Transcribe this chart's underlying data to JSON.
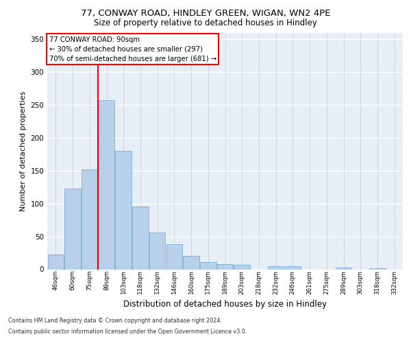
{
  "title1": "77, CONWAY ROAD, HINDLEY GREEN, WIGAN, WN2 4PE",
  "title2": "Size of property relative to detached houses in Hindley",
  "xlabel": "Distribution of detached houses by size in Hindley",
  "ylabel": "Number of detached properties",
  "categories": [
    "46sqm",
    "60sqm",
    "75sqm",
    "89sqm",
    "103sqm",
    "118sqm",
    "132sqm",
    "146sqm",
    "160sqm",
    "175sqm",
    "189sqm",
    "203sqm",
    "218sqm",
    "232sqm",
    "246sqm",
    "261sqm",
    "275sqm",
    "289sqm",
    "303sqm",
    "318sqm",
    "332sqm"
  ],
  "values": [
    22,
    123,
    152,
    257,
    180,
    95,
    56,
    38,
    20,
    11,
    8,
    7,
    0,
    5,
    5,
    0,
    0,
    3,
    0,
    2,
    0
  ],
  "bar_color": "#b8d0ea",
  "bar_edge_color": "#7aadd4",
  "red_line_index": 3,
  "red_line_label": "77 CONWAY ROAD: 90sqm",
  "annotation_line2": "← 30% of detached houses are smaller (297)",
  "annotation_line3": "70% of semi-detached houses are larger (681) →",
  "ylim": [
    0,
    360
  ],
  "yticks": [
    0,
    50,
    100,
    150,
    200,
    250,
    300,
    350
  ],
  "plot_bg_color": "#e8eef5",
  "footer1": "Contains HM Land Registry data © Crown copyright and database right 2024.",
  "footer2": "Contains public sector information licensed under the Open Government Licence v3.0."
}
